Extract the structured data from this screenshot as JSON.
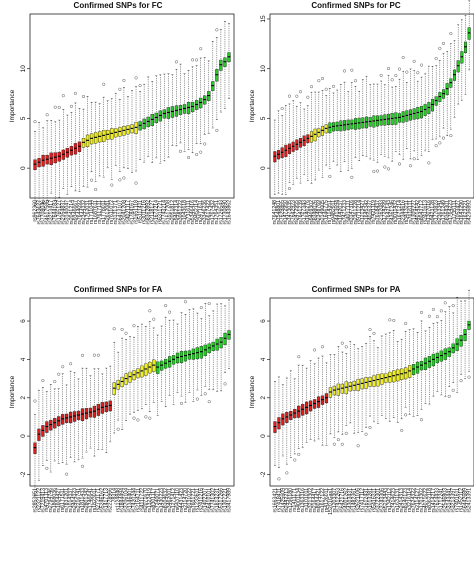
{
  "colors": {
    "rejected": "#dd1c1c",
    "tentative": "#eeee22",
    "confirmed": "#22cc22",
    "outline": "#222222"
  },
  "chart_data": [
    {
      "type": "boxplot",
      "title": "Confirmed SNPs for FC",
      "ylabel": "Importance",
      "ylim": [
        -3,
        15.5
      ],
      "yticks": [
        0,
        5,
        10
      ],
      "groups": {
        "rejected": 12,
        "tentative": 14,
        "confirmed": 23
      },
      "values": [
        0.4,
        0.6,
        0.8,
        0.9,
        1.0,
        1.1,
        1.2,
        1.4,
        1.6,
        1.8,
        2.0,
        2.2,
        2.6,
        2.8,
        3.0,
        3.1,
        3.2,
        3.3,
        3.4,
        3.5,
        3.6,
        3.7,
        3.8,
        3.9,
        4.0,
        4.1,
        4.3,
        4.5,
        4.7,
        4.9,
        5.1,
        5.3,
        5.5,
        5.6,
        5.7,
        5.8,
        5.9,
        6.0,
        6.1,
        6.2,
        6.4,
        6.6,
        6.9,
        7.3,
        8.3,
        9.4,
        10.4,
        10.7,
        11.2
      ],
      "tick_labels": [
        "rs962360",
        "rs7643127",
        "rs7708046",
        "rs4617586",
        "rs3213417",
        "rs7644183",
        "rs1765127",
        "rs2354837",
        "rs3140047",
        "rs2041214",
        "rs9346667",
        "rs7644092",
        "rs2344332",
        "rs1762031",
        "rs1711044",
        "rs1687611",
        "rs7617111",
        "rs1778011",
        "rs2612081",
        "rs7611072",
        "rs3131371",
        "rs6413107",
        "rs2041208",
        "rs4021117",
        "rs1784167",
        "rs1651118",
        "rs5111411",
        "rs3011216",
        "rs8362892",
        "rs2118127",
        "rs1673214",
        "rs6311721",
        "rs7743214",
        "rs1617208",
        "rs2051812",
        "rs9462314",
        "rs3081222",
        "rs1043618",
        "rs7316111",
        "rs5346416",
        "rs9452114",
        "rs2471611",
        "rs3346236",
        "rs6617422",
        "rs1767432",
        "rs1764351",
        "rs1726543",
        "rs1730890",
        "rs1643862"
      ]
    },
    {
      "type": "boxplot",
      "title": "Confirmed SNPs for PC",
      "ylabel": "Importance",
      "ylim": [
        -3,
        15.5
      ],
      "yticks": [
        0,
        5,
        10,
        15
      ],
      "groups": {
        "rejected": 10,
        "tentative": 5,
        "confirmed": 39
      },
      "values": [
        1.2,
        1.4,
        1.6,
        1.8,
        2.0,
        2.2,
        2.4,
        2.6,
        2.8,
        3.0,
        3.2,
        3.4,
        3.6,
        3.8,
        4.0,
        4.1,
        4.2,
        4.25,
        4.3,
        4.35,
        4.4,
        4.45,
        4.5,
        4.55,
        4.6,
        4.65,
        4.7,
        4.75,
        4.8,
        4.85,
        4.9,
        4.95,
        5.0,
        5.05,
        5.1,
        5.2,
        5.3,
        5.4,
        5.5,
        5.6,
        5.7,
        5.9,
        6.1,
        6.4,
        6.8,
        7.2,
        7.5,
        8.0,
        8.6,
        9.4,
        10.3,
        11.2,
        12.2,
        13.6
      ],
      "tick_labels": [
        "rs7641248",
        "rs7548801",
        "rs7629865",
        "rs1472950",
        "rs7473035",
        "rs7642923",
        "rs2472955",
        "rs7641239",
        "rs1767343",
        "rs1640276",
        "rs9469302",
        "rs8348026",
        "rs2348769",
        "rs2149005",
        "rs1646775",
        "rs7114351",
        "rs9482911",
        "rs4413694",
        "rs1642037",
        "rs7471233",
        "rs4017111",
        "rs3147316",
        "rs2361228",
        "rs9711214",
        "rs1213427",
        "rs1645342",
        "rs4016337",
        "rs7421119",
        "rs7618437",
        "rs2162083",
        "rs1724299",
        "rs7642143",
        "rs4361246",
        "rs3011432",
        "rs1671214",
        "rs2344616",
        "rs3413211",
        "rs7616111",
        "rs1309227",
        "rs4014142",
        "rs8043712",
        "rs2411613",
        "rs1307016",
        "rs9423128",
        "rs1770823",
        "rs2363341",
        "rs1761249",
        "rs8364301",
        "rs1764223",
        "rs1735111",
        "rs1053427",
        "rs1643290",
        "rs1623221",
        "rs4236892"
      ]
    },
    {
      "type": "boxplot",
      "title": "Confirmed SNPs for FA",
      "ylabel": "Importance",
      "ylim": [
        -2.6,
        7.2
      ],
      "yticks": [
        -2,
        0,
        2,
        4,
        6
      ],
      "groups": {
        "rejected": 20,
        "tentative": 11,
        "confirmed": 19
      },
      "values": [
        -0.6,
        0.1,
        0.3,
        0.5,
        0.6,
        0.7,
        0.8,
        0.9,
        0.95,
        1.0,
        1.05,
        1.1,
        1.15,
        1.2,
        1.25,
        1.3,
        1.4,
        1.5,
        1.55,
        1.6,
        2.5,
        2.7,
        2.85,
        3.0,
        3.1,
        3.2,
        3.3,
        3.4,
        3.5,
        3.6,
        3.7,
        3.6,
        3.7,
        3.8,
        3.9,
        4.0,
        4.1,
        4.15,
        4.2,
        4.25,
        4.3,
        4.35,
        4.4,
        4.5,
        4.6,
        4.7,
        4.8,
        4.9,
        5.1,
        5.3
      ],
      "tick_labels": [
        "rs2853651",
        "rs2321122",
        "rs7219413",
        "rs4701113",
        "rs2794746",
        "rs1868036",
        "rs1604427",
        "rs6171511",
        "rs7831201",
        "rs1014337",
        "rs2404323",
        "rs2216741",
        "rs1811433",
        "rs2801342",
        "rs1746641",
        "rs1823011",
        "rs2721171",
        "rs5246162",
        "rs1417713",
        "rs2278966",
        "-78314",
        "rs1124848",
        "rs1844494",
        "rs3706104",
        "rs1346401",
        "rs7420244",
        "rs2164711",
        "rs4111722",
        "rs2071670",
        "rs1322419",
        "rs8301117",
        "rs7240071",
        "rs1430223",
        "rs8104632",
        "rs3462001",
        "rs1271412",
        "rs6437110",
        "rs4431423",
        "rs2114720",
        "rs9131022",
        "rs7601721",
        "rs1233611",
        "rs2411216",
        "rs1402207",
        "rs6410101",
        "rs7741302",
        "rs1813231",
        "rs5317266",
        "rs1307221",
        "rs3417989"
      ]
    },
    {
      "type": "boxplot",
      "title": "Confirmed SNPs for PA",
      "ylabel": "Importance",
      "ylim": [
        -2.6,
        7.2
      ],
      "yticks": [
        -2,
        0,
        2,
        4,
        6
      ],
      "groups": {
        "rejected": 14,
        "tentative": 21,
        "confirmed": 15
      },
      "values": [
        0.5,
        0.7,
        0.9,
        1.0,
        1.1,
        1.2,
        1.3,
        1.4,
        1.5,
        1.6,
        1.7,
        1.8,
        1.9,
        2.0,
        2.3,
        2.4,
        2.45,
        2.5,
        2.55,
        2.6,
        2.65,
        2.7,
        2.75,
        2.8,
        2.85,
        2.9,
        2.95,
        3.0,
        3.05,
        3.1,
        3.15,
        3.2,
        3.25,
        3.3,
        3.4,
        3.5,
        3.6,
        3.7,
        3.8,
        3.9,
        4.0,
        4.1,
        4.2,
        4.3,
        4.4,
        4.6,
        4.8,
        5.0,
        5.3,
        5.8
      ],
      "tick_labels": [
        "rs1663421",
        "rs7418411",
        "rs1425609",
        "rs2442213",
        "rs1296180",
        "rs1411171",
        "rs4001134",
        "rs1363316",
        "rs1101011",
        "rs3213302",
        "rs2164417",
        "rs8034421",
        "rs1617122",
        "rs4126011",
        "15201Gas1",
        "rs1203307",
        "rs7412263",
        "rs6421716",
        "rs4001262",
        "rs4303431",
        "rs1482361",
        "rs2621106",
        "rs7417112",
        "rs1612431",
        "rs1013281",
        "rs5416311",
        "rs3722301",
        "rs3743306",
        "rs5213443",
        "rs1342112",
        "rs7414623",
        "rs1631131",
        "rs2414313",
        "rs8140123",
        "rs3216114",
        "rs7624322",
        "rs2114127",
        "rs1703302",
        "rs4071622",
        "rs8362118",
        "rs1414217",
        "rs7614433",
        "rs1712241",
        "rs2546803",
        "rs3143441",
        "rs3213397",
        "rs7401611",
        "rs1452112",
        "rs6442689",
        "rs2413391"
      ]
    }
  ]
}
